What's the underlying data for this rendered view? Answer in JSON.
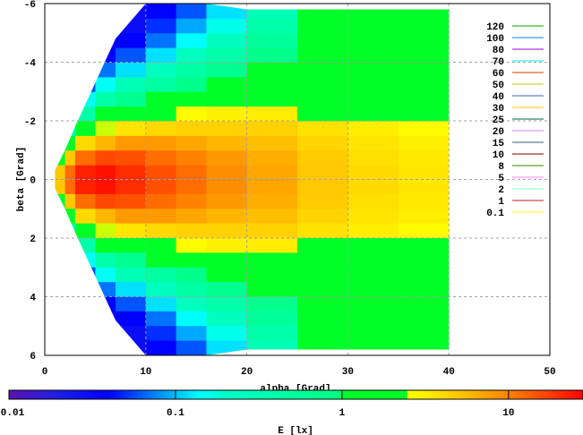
{
  "chart_data": {
    "type": "heatmap",
    "title": "",
    "xlabel": "alpha [Grad]",
    "ylabel": "beta [Grad]",
    "colorbar_label": "E [lx]",
    "xlim": [
      0,
      50
    ],
    "ylim": [
      -6,
      6
    ],
    "y_reversed": true,
    "xticks": [
      "0",
      "10",
      "20",
      "30",
      "40",
      "50"
    ],
    "yticks": [
      "-6",
      "-4",
      "-2",
      "0",
      "2",
      "4",
      "6"
    ],
    "colorbar_ticks": [
      "0.01",
      "0.1",
      "1",
      "10"
    ],
    "colorbar_range": [
      0.01,
      28
    ],
    "colorbar_scale": "log",
    "grid": true,
    "legend_position": "top-right",
    "legend": [
      {
        "label": "120",
        "color": "#00a000"
      },
      {
        "label": "100",
        "color": "#0080ff"
      },
      {
        "label": "80",
        "color": "#a000e0"
      },
      {
        "label": "70",
        "color": "#00f0f0"
      },
      {
        "label": "60",
        "color": "#c04000"
      },
      {
        "label": "50",
        "color": "#c8c800"
      },
      {
        "label": "40",
        "color": "#4060d0"
      },
      {
        "label": "30",
        "color": "#ffc000"
      },
      {
        "label": "25",
        "color": "#006040"
      },
      {
        "label": "20",
        "color": "#c080ff"
      },
      {
        "label": "15",
        "color": "#306080"
      },
      {
        "label": "10",
        "color": "#800000"
      },
      {
        "label": "8",
        "color": "#408000"
      },
      {
        "label": "5",
        "color": "#ff80ff"
      },
      {
        "label": "2",
        "color": "#80ffc0"
      },
      {
        "label": "1",
        "color": "#c02020"
      },
      {
        "label": "0.1",
        "color": "#ffff00"
      }
    ],
    "alpha_edges": [
      1,
      2,
      3,
      5,
      7,
      10,
      13,
      16,
      20,
      25,
      30,
      35,
      40
    ],
    "beta_max": [
      0.3,
      1.0,
      1.8,
      3.3,
      4.8,
      6,
      6,
      6,
      5.8,
      5.8,
      5.8,
      5.8,
      5.8
    ],
    "beta_edges": [
      0,
      0.5,
      1,
      1.5,
      2,
      2.5,
      3,
      3.5,
      4,
      4.5,
      5,
      5.5,
      6
    ],
    "E_values": [
      [
        5,
        1.5,
        0.3,
        0.1,
        0.05,
        0.03,
        0.02,
        0.02,
        0.02,
        0.02,
        0.02,
        0.02
      ],
      [
        12,
        5,
        1.2,
        0.3,
        0.1,
        0.05,
        0.03,
        0.03,
        0.03,
        0.03,
        0.03,
        0.03
      ],
      [
        22,
        12,
        4,
        1.2,
        0.4,
        0.15,
        0.06,
        0.04,
        0.03,
        0.03,
        0.03,
        0.03
      ],
      [
        25,
        16,
        6,
        2.5,
        1,
        0.4,
        0.15,
        0.07,
        0.04,
        0.03,
        0.03,
        0.03
      ],
      [
        20,
        15,
        8,
        3.5,
        1.5,
        0.7,
        0.3,
        0.12,
        0.06,
        0.04,
        0.03,
        0.03
      ],
      [
        15,
        12,
        8,
        4,
        2,
        1,
        0.5,
        0.25,
        0.12,
        0.07,
        0.05,
        0.04
      ],
      [
        12,
        10,
        7,
        4.5,
        2.6,
        1.4,
        0.8,
        0.45,
        0.25,
        0.14,
        0.09,
        0.06
      ],
      [
        9,
        8,
        6,
        4.5,
        3,
        1.8,
        1.1,
        0.7,
        0.4,
        0.25,
        0.16,
        0.12
      ],
      [
        7,
        6.5,
        5.5,
        4.5,
        3.2,
        2.2,
        1.6,
        1.2,
        0.8,
        0.55,
        0.4,
        0.3
      ],
      [
        5,
        4.8,
        4.3,
        3.6,
        2.4,
        2.0,
        1.7,
        1.4,
        1.2,
        1.1,
        1.05,
        1.0
      ],
      [
        4,
        3.8,
        3.5,
        3.1,
        2.3,
        2.0,
        1.7,
        1.5,
        1.3,
        1.2,
        1.1,
        1.05
      ],
      [
        3.4,
        3.3,
        3.1,
        2.6,
        2.2,
        2.0,
        1.7,
        1.5,
        1.3,
        1.2,
        1.1,
        1.05
      ]
    ]
  }
}
